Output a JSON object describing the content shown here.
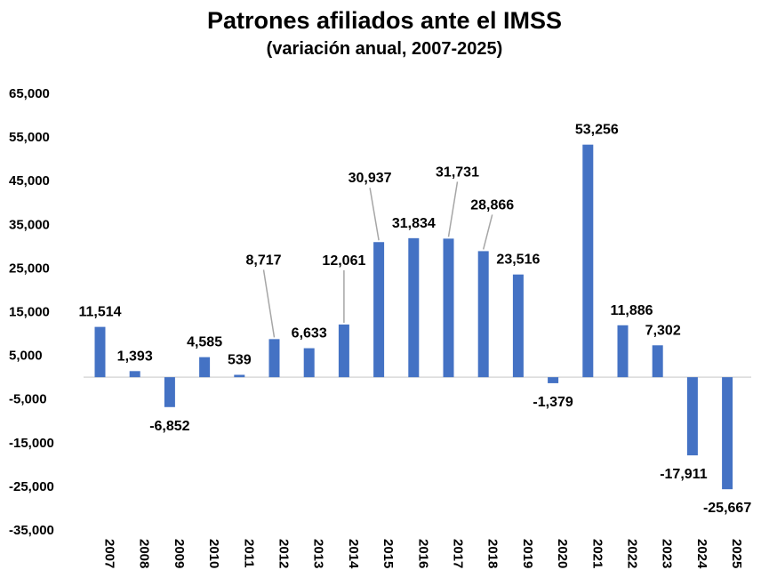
{
  "chart_data": {
    "type": "bar",
    "title": "Patrones afiliados ante el IMSS",
    "subtitle": "(variación anual, 2007-2025)",
    "categories": [
      "2007",
      "2008",
      "2009",
      "2010",
      "2011",
      "2012",
      "2013",
      "2014",
      "2015",
      "2016",
      "2017",
      "2018",
      "2019",
      "2020",
      "2021",
      "2022",
      "2023",
      "2024",
      "2025"
    ],
    "values": [
      11514,
      1393,
      -6852,
      4585,
      539,
      8717,
      6633,
      12061,
      30937,
      31834,
      31731,
      28866,
      23516,
      -1379,
      53256,
      11886,
      7302,
      -17911,
      -25667
    ],
    "data_labels": [
      "11,514",
      "1,393",
      "-6,852",
      "4,585",
      "539",
      "8,717",
      "6,633",
      "12,061",
      "30,937",
      "31,834",
      "31,731",
      "28,866",
      "23,516",
      "-1,379",
      "53,256",
      "11,886",
      "7,302",
      "-17,911",
      "-25,667"
    ],
    "yticks": [
      "65,000",
      "55,000",
      "45,000",
      "35,000",
      "25,000",
      "15,000",
      "5,000",
      "-5,000",
      "-15,000",
      "-25,000",
      "-35,000"
    ],
    "ytick_values": [
      65000,
      55000,
      45000,
      35000,
      25000,
      15000,
      5000,
      -5000,
      -15000,
      -25000,
      -35000
    ],
    "ylim": [
      -35000,
      65000
    ],
    "grid": false,
    "legend": "none",
    "bar_color": "#4472C4"
  }
}
